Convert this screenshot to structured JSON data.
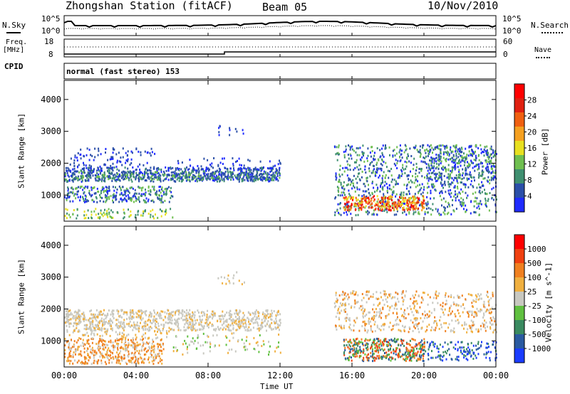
{
  "header": {
    "station": "Zhongshan Station (fitACF)",
    "beam": "Beam 05",
    "date": "10/Nov/2010"
  },
  "top_panel": {
    "left_label": "N.Sky",
    "right_label": "N.Search",
    "y_left_ticks": [
      "10^5",
      "10^0"
    ],
    "y_right_ticks": [
      "10^5",
      "10^0"
    ]
  },
  "freq_panel": {
    "left_label_line1": "Freq.",
    "left_label_line2": "[MHz]",
    "right_label": "Nave",
    "y_left_ticks": [
      "18",
      "8"
    ],
    "y_right_ticks": [
      "60",
      "0"
    ]
  },
  "cpid": {
    "label": "CPID",
    "mode": "normal (fast stereo) 153"
  },
  "x_axis": {
    "label": "Time UT",
    "ticks": [
      "00:00",
      "04:00",
      "08:00",
      "12:00",
      "16:00",
      "20:00",
      "00:00"
    ]
  },
  "chart_data": [
    {
      "type": "heatmap",
      "title": "",
      "ylabel": "Slant Range [km]",
      "xlabel": "",
      "x_range_hours": [
        0,
        24
      ],
      "y_range_km": [
        180,
        4600
      ],
      "y_ticks": [
        1000,
        2000,
        3000,
        4000
      ],
      "colorbar": {
        "label": "Power [dB]",
        "ticks": [
          "4",
          "8",
          "12",
          "16",
          "20",
          "24",
          "28"
        ],
        "colors": [
          "#1f2bff",
          "#2b4fa8",
          "#3f8f70",
          "#6fbf50",
          "#e8e020",
          "#f5a020",
          "#f06010",
          "#e02010",
          "#ff0000"
        ]
      }
    },
    {
      "type": "heatmap",
      "title": "",
      "ylabel": "Slant Range [km]",
      "xlabel": "Time UT",
      "x_range_hours": [
        0,
        24
      ],
      "y_range_km": [
        180,
        4600
      ],
      "y_ticks": [
        1000,
        2000,
        3000,
        4000
      ],
      "colorbar": {
        "label": "Velocity [m s^-1]",
        "ticks": [
          "1000",
          "500",
          "100",
          "25",
          "-25",
          "-100",
          "-500",
          "-1000"
        ],
        "colors": [
          "#1a3cff",
          "#2a5aa0",
          "#3a8a60",
          "#60c040",
          "#c8c8c0",
          "#f0b040",
          "#f08020",
          "#f04010",
          "#ff0000"
        ]
      }
    }
  ]
}
